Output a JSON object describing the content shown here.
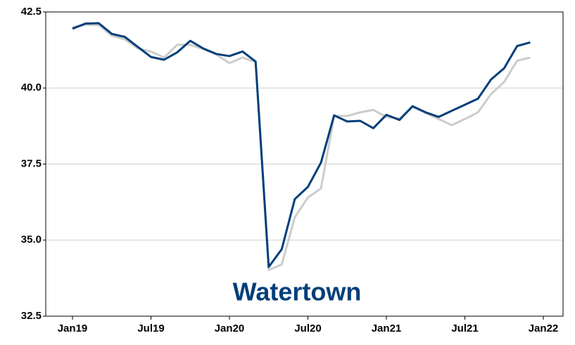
{
  "chart_data": {
    "type": "line",
    "title": "Watertown",
    "categories": [
      "Jan19",
      null,
      null,
      null,
      null,
      null,
      "Jul19",
      null,
      null,
      null,
      null,
      null,
      "Jan20",
      null,
      null,
      null,
      null,
      null,
      "Jul20",
      null,
      null,
      null,
      null,
      null,
      "Jan21",
      null,
      null,
      null,
      null,
      null,
      "Jul21",
      null,
      null,
      null,
      null,
      null,
      "Jan22"
    ],
    "series": [
      {
        "color": "#cccccc",
        "values": [
          42.0,
          42.08,
          42.07,
          41.72,
          41.6,
          41.3,
          41.2,
          41.0,
          41.42,
          41.42,
          41.28,
          41.1,
          40.82,
          41.0,
          40.85,
          34.02,
          34.2,
          35.75,
          36.4,
          36.7,
          39.08,
          39.08,
          39.2,
          39.28,
          39.05,
          39.0,
          39.38,
          39.18,
          38.98,
          38.78,
          38.98,
          39.2,
          39.8,
          40.2,
          40.9,
          41.0,
          null
        ]
      },
      {
        "color": "#003f7a",
        "values": [
          41.95,
          42.12,
          42.13,
          41.78,
          41.68,
          41.35,
          41.02,
          40.93,
          41.17,
          41.55,
          41.3,
          41.12,
          41.05,
          41.2,
          40.87,
          34.12,
          34.7,
          36.35,
          36.75,
          37.55,
          39.1,
          38.9,
          38.92,
          38.68,
          39.12,
          38.95,
          39.4,
          39.2,
          39.05,
          39.25,
          39.45,
          39.65,
          40.28,
          40.65,
          41.38,
          41.5,
          null
        ]
      }
    ],
    "ylim": [
      32.5,
      42.5
    ],
    "yticks": [
      {
        "value": 32.5,
        "label": "32.5"
      },
      {
        "value": 35,
        "label": "35.0"
      },
      {
        "value": 37.5,
        "label": "37.5"
      },
      {
        "value": 40,
        "label": "40.0"
      },
      {
        "value": 42.5,
        "label": "42.5"
      }
    ],
    "grid": true
  }
}
